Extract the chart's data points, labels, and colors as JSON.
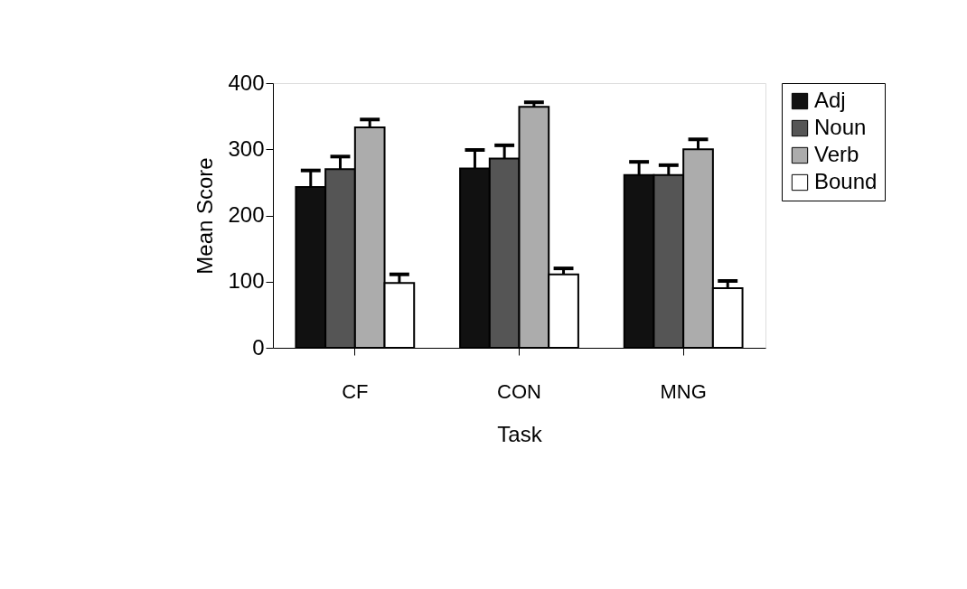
{
  "chart_data": {
    "type": "bar",
    "xlabel": "Task",
    "ylabel": "Mean Score",
    "categories": [
      "CF",
      "CON",
      "MNG"
    ],
    "series": [
      {
        "name": "Adj",
        "color": "#111111",
        "values": [
          243,
          271,
          261
        ],
        "errors": [
          [
            243,
            268
          ],
          [
            271,
            299
          ],
          [
            261,
            281
          ]
        ]
      },
      {
        "name": "Noun",
        "color": "#555555",
        "values": [
          270,
          286,
          261
        ],
        "errors": [
          [
            270,
            289
          ],
          [
            286,
            306
          ],
          [
            261,
            276
          ]
        ]
      },
      {
        "name": "Verb",
        "color": "#acacac",
        "values": [
          333,
          364,
          300
        ],
        "errors": [
          [
            333,
            345
          ],
          [
            364,
            371
          ],
          [
            300,
            315
          ]
        ]
      },
      {
        "name": "Bound",
        "color": "#ffffff",
        "values": [
          98,
          111,
          90
        ],
        "errors": [
          [
            98,
            111
          ],
          [
            111,
            120
          ],
          [
            90,
            101
          ]
        ]
      }
    ],
    "ylim": [
      0,
      400
    ],
    "yticks": [
      0,
      100,
      200,
      300,
      400
    ],
    "grid": false,
    "legend": "right"
  }
}
